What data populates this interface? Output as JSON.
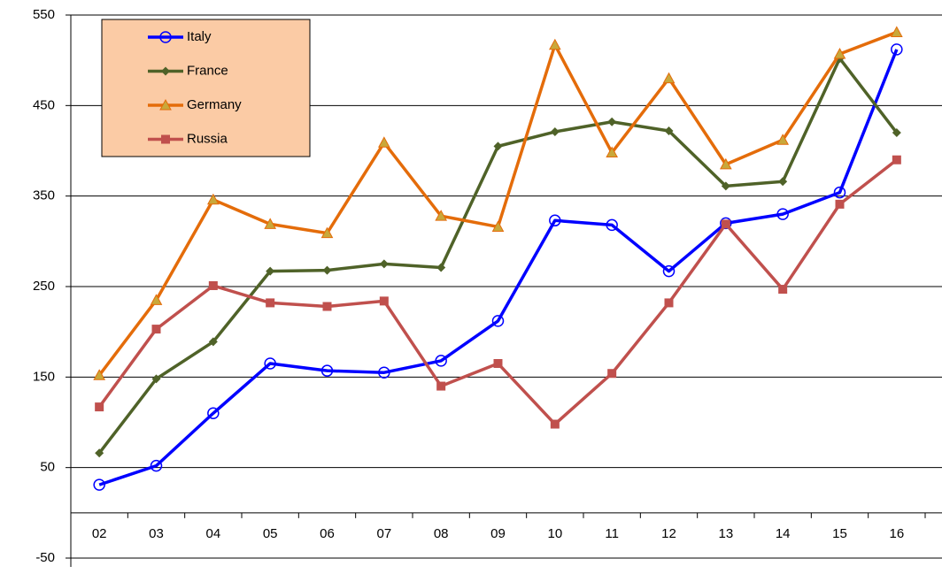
{
  "chart_data": {
    "type": "line",
    "categories": [
      "02",
      "03",
      "04",
      "05",
      "06",
      "07",
      "08",
      "09",
      "10",
      "11",
      "12",
      "13",
      "14",
      "15",
      "16"
    ],
    "series": [
      {
        "name": "Italy",
        "color": "#0000ff",
        "marker": "circle",
        "values": [
          31,
          52,
          110,
          165,
          157,
          155,
          168,
          212,
          323,
          318,
          267,
          320,
          330,
          354,
          512
        ]
      },
      {
        "name": "France",
        "color": "#4f6228",
        "marker": "diamond",
        "values": [
          66,
          148,
          189,
          267,
          268,
          275,
          271,
          405,
          421,
          432,
          422,
          361,
          366,
          502,
          420
        ]
      },
      {
        "name": "Germany",
        "color": "#e46c0a",
        "marker": "triangle",
        "values": [
          152,
          235,
          346,
          319,
          309,
          409,
          328,
          316,
          517,
          398,
          480,
          385,
          412,
          507,
          531
        ]
      },
      {
        "name": "Russia",
        "color": "#c0504d",
        "marker": "square",
        "values": [
          117,
          203,
          251,
          232,
          228,
          234,
          140,
          165,
          98,
          154,
          232,
          319,
          247,
          341,
          390
        ]
      }
    ],
    "ylim": [
      -50,
      550
    ],
    "yticks": [
      -50,
      50,
      150,
      250,
      350,
      450,
      550
    ],
    "grid": true,
    "legend": "top-left"
  }
}
